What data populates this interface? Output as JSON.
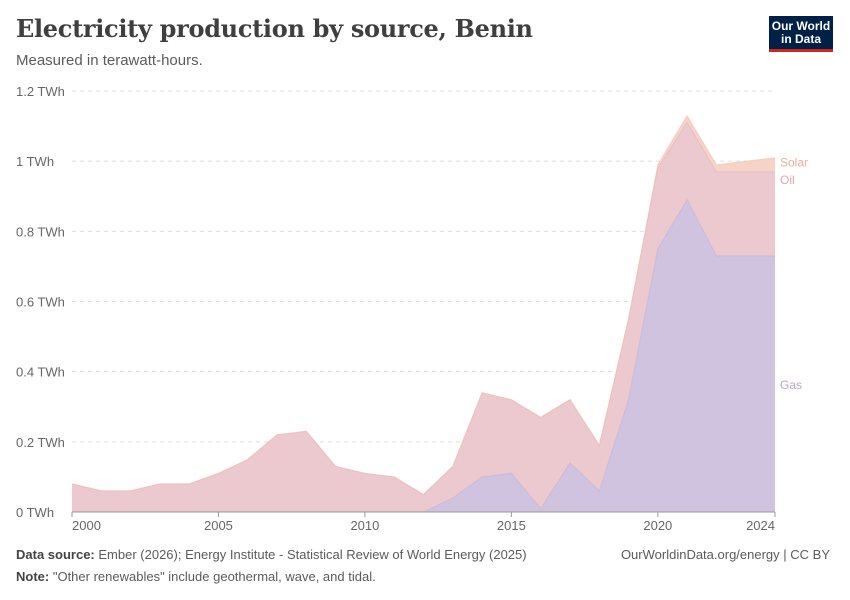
{
  "header": {
    "title": "Electricity production by source, Benin",
    "subtitle": "Measured in terawatt-hours.",
    "logo_line1": "Our World",
    "logo_line2": "in Data"
  },
  "footer": {
    "source_label": "Data source:",
    "source_text": "Ember (2026); Energy Institute - Statistical Review of World Energy (2025)",
    "note_label": "Note:",
    "note_text": "\"Other renewables\" include geothermal, wave, and tidal.",
    "credit": "OurWorldinData.org/energy | CC BY"
  },
  "colors": {
    "gas": "#cfc3e0",
    "oil": "#ecc8cf",
    "solar": "#f6d3c7",
    "gas_label": "#b8a4cf",
    "oil_label": "#e2a4b1",
    "solar_label": "#eab09c",
    "grid": "#dddddd",
    "axis": "#666666"
  },
  "chart_data": {
    "type": "area",
    "stacked": true,
    "title": "Electricity production by source, Benin",
    "ylabel": "",
    "y_unit": "TWh",
    "ylim": [
      0,
      1.2
    ],
    "y_ticks": [
      0,
      0.2,
      0.4,
      0.6,
      0.8,
      1,
      1.2
    ],
    "y_tick_labels": [
      "0 TWh",
      "0.2 TWh",
      "0.4 TWh",
      "0.6 TWh",
      "0.8 TWh",
      "1 TWh",
      "1.2 TWh"
    ],
    "xlim": [
      2000,
      2024
    ],
    "x_ticks": [
      2000,
      2005,
      2010,
      2015,
      2020,
      2024
    ],
    "x_tick_labels": [
      "2000",
      "2005",
      "2010",
      "2015",
      "2020",
      "2024"
    ],
    "grid": "horizontal dashed",
    "legend": "inline labels at right end",
    "x": [
      2000,
      2001,
      2002,
      2003,
      2004,
      2005,
      2006,
      2007,
      2008,
      2009,
      2010,
      2011,
      2012,
      2013,
      2014,
      2015,
      2016,
      2017,
      2018,
      2019,
      2020,
      2021,
      2022,
      2023,
      2024
    ],
    "series": [
      {
        "name": "Gas",
        "values": [
          0,
          0,
          0,
          0,
          0,
          0,
          0,
          0,
          0,
          0,
          0,
          0,
          0,
          0.04,
          0.1,
          0.11,
          0.01,
          0.14,
          0.06,
          0.32,
          0.75,
          0.89,
          0.73,
          0.73,
          0.73
        ]
      },
      {
        "name": "Oil",
        "values": [
          0.08,
          0.06,
          0.06,
          0.08,
          0.08,
          0.11,
          0.15,
          0.22,
          0.23,
          0.13,
          0.11,
          0.1,
          0.05,
          0.09,
          0.24,
          0.21,
          0.26,
          0.18,
          0.13,
          0.23,
          0.23,
          0.22,
          0.24,
          0.24,
          0.24
        ]
      },
      {
        "name": "Solar",
        "values": [
          0,
          0,
          0,
          0,
          0,
          0,
          0,
          0,
          0,
          0,
          0,
          0,
          0,
          0,
          0,
          0,
          0,
          0,
          0,
          0,
          0.01,
          0.02,
          0.02,
          0.03,
          0.04
        ]
      }
    ]
  }
}
